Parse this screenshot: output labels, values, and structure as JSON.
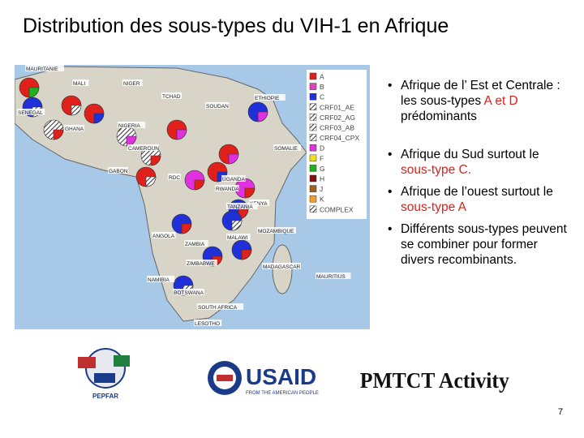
{
  "title": "Distribution des sous-types du VIH-1 en Afrique",
  "map": {
    "labels": [
      "MAURITANIE",
      "MALI",
      "NIGER",
      "TCHAD",
      "SOUDAN",
      "ETHIOPIE",
      "SENEGAL",
      "GHANA",
      "NIGERIA",
      "CAMEROUN",
      "GABON",
      "RDC",
      "UGANDA",
      "KENYA",
      "SOMALIE",
      "RWANDA",
      "TANZANIA",
      "ANGOLA",
      "ZAMBIA",
      "MALAWI",
      "MOZAMBIQUE",
      "ZIMBABWE",
      "NAMIBIA",
      "BOTSWANA",
      "SOUTH AFRICA",
      "LESOTHO",
      "MADAGASCAR",
      "MAURITIUS"
    ],
    "legend": [
      {
        "name": "A",
        "color": "#e0201a"
      },
      {
        "name": "B",
        "color": "#e040c0"
      },
      {
        "name": "C",
        "color": "#2030d8"
      },
      {
        "name": "CRF01_AE",
        "color": "#c06060",
        "hatched": true
      },
      {
        "name": "CRF02_AG",
        "color": "#4060c0",
        "hatched": true
      },
      {
        "name": "CRF03_AB",
        "color": "#a0a0a0",
        "hatched": true
      },
      {
        "name": "CRF04_CPX",
        "color": "#8080e0",
        "hatched": true
      },
      {
        "name": "D",
        "color": "#e030e0"
      },
      {
        "name": "F",
        "color": "#f0e020"
      },
      {
        "name": "G",
        "color": "#20b020"
      },
      {
        "name": "H",
        "color": "#801010"
      },
      {
        "name": "J",
        "color": "#a06020"
      },
      {
        "name": "K",
        "color": "#f0a030"
      },
      {
        "name": "COMPLEX",
        "color": "#2030d8",
        "hatched": true
      }
    ]
  },
  "bullets": [
    {
      "parts": [
        {
          "text": "Afrique de l’ Est et Centrale : les sous-types "
        },
        {
          "text": "A et D",
          "color": "#e0201a"
        },
        {
          "text": " prédominants"
        }
      ]
    },
    {
      "parts": [
        {
          "text": "Afrique du Sud  surtout le "
        },
        {
          "text": "sous-type C.",
          "color": "#e0201a"
        }
      ]
    },
    {
      "parts": [
        {
          "text": "Afrique de l’ouest surtout le "
        },
        {
          "text": "sous-type A",
          "color": "#e0201a"
        }
      ]
    },
    {
      "parts": [
        {
          "text": "Différents sous-types peuvent se combiner pour former divers recombinants."
        }
      ]
    }
  ],
  "logos": {
    "pepfar": "PEPFAR",
    "usaid": "USAID",
    "usaid_tagline": "FROM THE AMERICAN PEOPLE",
    "pmtct": "PMTCT Activity"
  },
  "page_number": "7"
}
